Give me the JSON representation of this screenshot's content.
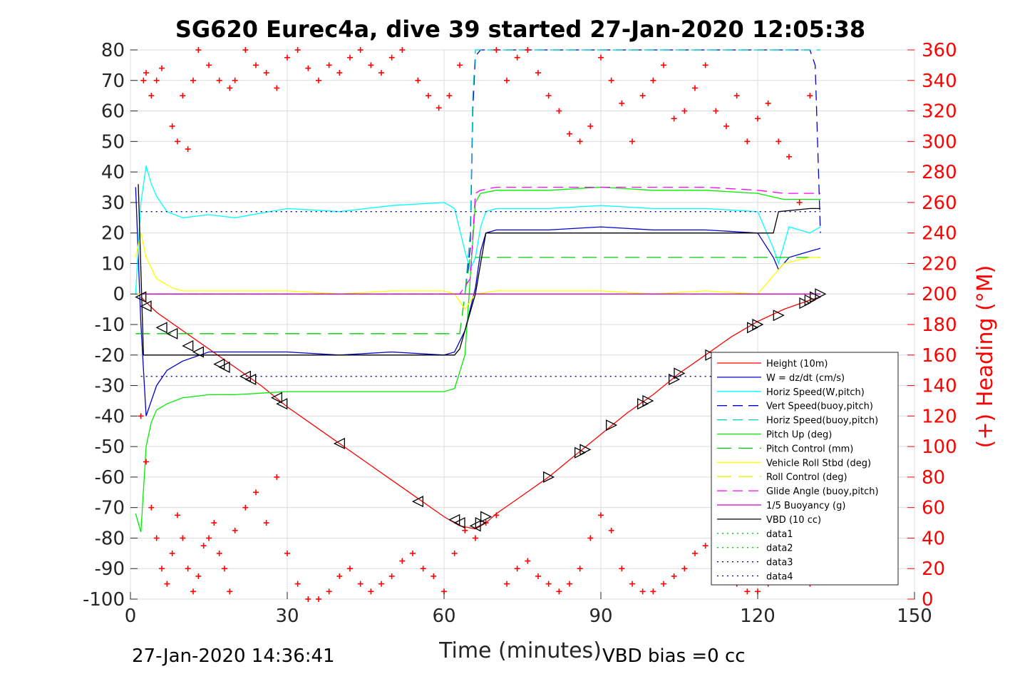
{
  "chart_data": {
    "type": "line",
    "title": "SG620 Eurec4a, dive 39 started 27-Jan-2020 12:05:38",
    "xlabel": "Time (minutes)",
    "ylabel": "",
    "y2label": "(+) Heading (°M)",
    "xlim": [
      0,
      150
    ],
    "ylim": [
      -100,
      80
    ],
    "y2lim": [
      0,
      360
    ],
    "grid": true,
    "legend_position": "bottom-right",
    "x_ticks": [
      "0",
      "30",
      "60",
      "90",
      "120",
      "150"
    ],
    "y_ticks": [
      "80",
      "70",
      "60",
      "50",
      "40",
      "30",
      "20",
      "10",
      "0",
      "-10",
      "-20",
      "-30",
      "-40",
      "-50",
      "-60",
      "-70",
      "-80",
      "-90",
      "-100"
    ],
    "y2_ticks": [
      "360",
      "340",
      "320",
      "300",
      "280",
      "260",
      "240",
      "220",
      "200",
      "180",
      "160",
      "140",
      "120",
      "100",
      "80",
      "60",
      "40",
      "20",
      "0"
    ],
    "footer_left": "27-Jan-2020 14:36:41",
    "footer_right": "VBD bias =0 cc",
    "colors": {
      "height": "#ff0000",
      "w": "#0000cc",
      "horiz": "#00ffff",
      "vert_buoy": "#0000cc",
      "horiz_buoy": "#00cccc",
      "pitch": "#00ee00",
      "pitch_ctrl": "#00cc00",
      "roll": "#ffff00",
      "roll_ctrl": "#eeee00",
      "glide": "#ff00ff",
      "buoy": "#cc00cc",
      "vbd": "#000000",
      "data_green": "#00cc00",
      "data_blue": "#0000aa",
      "heading": "#ff0000"
    },
    "series": [
      {
        "name": "Height (10m)",
        "key": "height",
        "dash": "",
        "x": [
          2,
          5,
          10,
          15,
          20,
          25,
          30,
          35,
          40,
          45,
          50,
          55,
          60,
          63,
          66,
          68,
          70,
          75,
          80,
          85,
          90,
          95,
          100,
          105,
          110,
          115,
          120,
          125,
          130,
          132
        ],
        "y": [
          -1,
          -6,
          -12,
          -18,
          -24,
          -30,
          -37,
          -43,
          -49,
          -55,
          -61,
          -67,
          -73,
          -76,
          -77,
          -75,
          -72,
          -66,
          -60,
          -53,
          -46,
          -39,
          -33,
          -26,
          -20,
          -14,
          -9,
          -5,
          -2,
          -1
        ]
      },
      {
        "name": "W = dz/dt (cm/s)",
        "key": "w",
        "dash": "",
        "x": [
          1,
          2,
          3,
          4,
          5,
          7,
          10,
          15,
          20,
          30,
          40,
          50,
          60,
          62,
          64,
          66,
          67,
          68,
          70,
          80,
          90,
          100,
          110,
          120,
          123,
          124,
          126,
          130,
          132
        ],
        "y": [
          35,
          -10,
          -40,
          -35,
          -30,
          -25,
          -22,
          -19,
          -19,
          -19,
          -20,
          -19,
          -20,
          -19,
          -12,
          2,
          14,
          20,
          21,
          21,
          22,
          21,
          21,
          20,
          12,
          8,
          12,
          14,
          15
        ]
      },
      {
        "name": "Horiz Speed(W,pitch)",
        "key": "horiz",
        "dash": "",
        "x": [
          1,
          2,
          3,
          4,
          5,
          7,
          10,
          15,
          20,
          30,
          40,
          50,
          60,
          62,
          64,
          65,
          66,
          67,
          68,
          70,
          80,
          90,
          100,
          110,
          120,
          123,
          124,
          126,
          130,
          132
        ],
        "y": [
          0,
          30,
          42,
          36,
          32,
          27,
          25,
          26,
          25,
          28,
          27,
          29,
          30,
          28,
          14,
          8,
          12,
          22,
          27,
          28,
          28,
          29,
          28,
          28,
          27,
          15,
          10,
          22,
          20,
          22
        ]
      },
      {
        "name": "Vert Speed(buoy,pitch)",
        "key": "vert_buoy",
        "dash": "14,8",
        "x": [
          2,
          10,
          30,
          50,
          60,
          63,
          64,
          65,
          65.5,
          66,
          67,
          70,
          130,
          131,
          132
        ],
        "y": [
          0,
          0,
          0,
          0,
          0,
          0,
          0,
          15,
          60,
          78,
          80,
          80,
          80,
          75,
          20
        ]
      },
      {
        "name": "Horiz Speed(buoy,pitch)",
        "key": "horiz_buoy",
        "dash": "14,8",
        "x": [
          2,
          10,
          30,
          50,
          60,
          63,
          64,
          65,
          65.5,
          66,
          67,
          70,
          130,
          132
        ],
        "y": [
          0,
          0,
          0,
          0,
          0,
          0,
          0,
          20,
          65,
          80,
          80,
          80,
          80,
          80
        ]
      },
      {
        "name": "Pitch Up (deg)",
        "key": "pitch",
        "dash": "",
        "x": [
          1,
          2,
          3,
          4,
          5,
          7,
          10,
          15,
          20,
          30,
          40,
          50,
          60,
          62,
          64,
          65,
          66,
          67,
          70,
          80,
          90,
          100,
          110,
          120,
          125,
          130,
          132
        ],
        "y": [
          -72,
          -78,
          -50,
          -42,
          -38,
          -36,
          -34,
          -33,
          -33,
          -32,
          -32,
          -32,
          -32,
          -31,
          -20,
          5,
          30,
          33,
          34,
          34,
          35,
          34,
          34,
          33,
          31,
          31,
          31
        ]
      },
      {
        "name": "Pitch Control (mm)",
        "key": "pitch_ctrl",
        "dash": "20,10",
        "x": [
          1,
          2,
          3,
          60,
          63,
          64,
          65,
          66,
          70,
          130,
          132
        ],
        "y": [
          -13,
          -13,
          -13,
          -13,
          -13,
          0,
          12,
          12,
          12,
          12,
          12
        ]
      },
      {
        "name": "Vehicle Roll Stbd (deg)",
        "key": "roll",
        "dash": "",
        "x": [
          1,
          2,
          3,
          5,
          8,
          10,
          15,
          20,
          30,
          40,
          50,
          60,
          62,
          64,
          66,
          70,
          80,
          90,
          100,
          110,
          120,
          125,
          130,
          132
        ],
        "y": [
          12,
          20,
          12,
          5,
          2,
          1,
          1,
          1,
          1,
          0,
          1,
          1,
          0,
          -5,
          0,
          1,
          1,
          1,
          0,
          1,
          0,
          10,
          12,
          12
        ]
      },
      {
        "name": "Roll Control (deg)",
        "key": "roll_ctrl",
        "dash": "20,10",
        "x": [
          1,
          3,
          5,
          10,
          30,
          60,
          63,
          64,
          66,
          70,
          130,
          132
        ],
        "y": [
          0,
          0,
          0,
          0,
          0,
          0,
          0,
          0,
          0,
          0,
          0,
          0
        ]
      },
      {
        "name": "Glide Angle (buoy,pitch)",
        "key": "glide",
        "dash": "14,8",
        "x": [
          2,
          10,
          30,
          60,
          63,
          65,
          66,
          67,
          70,
          80,
          90,
          100,
          110,
          120,
          125,
          130,
          132
        ],
        "y": [
          0,
          0,
          0,
          0,
          0,
          5,
          33,
          34,
          35,
          35,
          35,
          35,
          35,
          34,
          33,
          33,
          33
        ]
      },
      {
        "name": "1/5 Buoyancy (g)",
        "key": "buoy",
        "dash": "",
        "x": [
          2,
          10,
          30,
          60,
          63,
          64,
          65,
          66,
          132
        ],
        "y": [
          0,
          0,
          0,
          0,
          0,
          0,
          0,
          0,
          0
        ]
      },
      {
        "name": "VBD (10 cc)",
        "key": "vbd",
        "dash": "",
        "x": [
          1.5,
          2.5,
          3,
          10,
          30,
          50,
          62,
          63,
          64,
          66,
          67,
          68,
          70,
          100,
          123,
          124,
          130,
          132
        ],
        "y": [
          36,
          -20,
          -20,
          -20,
          -20,
          -20,
          -20,
          -18,
          -12,
          0,
          10,
          20,
          20,
          20,
          20,
          27,
          28,
          28
        ]
      },
      {
        "name": "data1",
        "key": "data_green",
        "dash": "2,5",
        "x": [],
        "y": []
      },
      {
        "name": "data2",
        "key": "data_green",
        "dash": "2,5",
        "x": [],
        "y": []
      },
      {
        "name": "data3",
        "key": "data_blue",
        "dash": "2,5",
        "x": [
          2,
          132
        ],
        "y": [
          27,
          27
        ]
      },
      {
        "name": "data4",
        "key": "data_blue",
        "dash": "2,5",
        "x": [
          2,
          132
        ],
        "y": [
          -27,
          -27
        ]
      }
    ],
    "heading_markers": {
      "name": "(+) Heading (°M)",
      "upper": {
        "x": [
          2.5,
          3,
          4,
          5,
          6,
          8,
          9,
          10,
          11,
          12,
          13,
          15,
          17,
          19,
          20,
          22,
          24,
          26,
          28,
          30,
          32,
          34,
          36,
          38,
          40,
          42,
          44,
          46,
          48,
          50,
          52,
          55,
          57,
          59,
          61,
          63,
          70,
          72,
          74,
          76,
          78,
          80,
          82,
          84,
          86,
          88,
          90,
          92,
          94,
          96,
          98,
          100,
          102,
          104,
          106,
          108,
          110,
          112,
          114,
          116,
          118,
          120,
          122,
          124,
          126,
          128,
          130
        ],
        "y": [
          340,
          345,
          330,
          340,
          348,
          310,
          300,
          330,
          295,
          340,
          360,
          350,
          340,
          335,
          340,
          360,
          350,
          345,
          335,
          355,
          360,
          348,
          340,
          350,
          345,
          355,
          360,
          350,
          345,
          355,
          360,
          340,
          330,
          322,
          330,
          350,
          360,
          340,
          355,
          360,
          345,
          330,
          320,
          305,
          300,
          310,
          355,
          340,
          325,
          300,
          330,
          340,
          350,
          315,
          320,
          335,
          350,
          320,
          310,
          330,
          300,
          315,
          325,
          300,
          290,
          260,
          330
        ]
      },
      "lower": {
        "x": [
          2,
          3,
          4,
          5,
          6,
          7,
          8,
          9,
          10,
          11,
          12,
          13,
          14,
          15,
          16,
          17,
          18,
          19,
          20,
          22,
          24,
          26,
          28,
          30,
          32,
          34,
          36,
          38,
          40,
          42,
          44,
          46,
          48,
          50,
          52,
          54,
          56,
          58,
          60,
          62,
          64,
          66,
          68,
          70,
          72,
          74,
          76,
          78,
          80,
          82,
          84,
          86,
          88,
          90,
          92,
          94,
          96,
          98,
          100,
          102,
          104,
          106,
          108,
          110,
          112,
          114,
          116,
          118,
          120,
          122,
          124,
          126,
          128,
          130
        ],
        "y": [
          120,
          90,
          60,
          40,
          20,
          10,
          30,
          55,
          40,
          20,
          5,
          15,
          35,
          40,
          50,
          30,
          20,
          5,
          45,
          60,
          70,
          50,
          80,
          30,
          10,
          0,
          0,
          5,
          15,
          20,
          10,
          5,
          10,
          15,
          25,
          30,
          20,
          15,
          5,
          30,
          45,
          40,
          50,
          55,
          10,
          20,
          25,
          15,
          10,
          5,
          10,
          20,
          40,
          55,
          45,
          20,
          10,
          5,
          5,
          10,
          15,
          20,
          30,
          35,
          40,
          20,
          10,
          5,
          5,
          10,
          15,
          20,
          25,
          10
        ]
      }
    },
    "height_markers": {
      "down": {
        "x": [
          2,
          3,
          6,
          8,
          11,
          13,
          17,
          18,
          22,
          23,
          28,
          29,
          40,
          55,
          62,
          63,
          66
        ],
        "y": [
          -1,
          -4,
          -11,
          -13,
          -17,
          -19,
          -23,
          -24,
          -27,
          -28,
          -34,
          -36,
          -49,
          -68,
          -74,
          -75,
          -76
        ]
      },
      "up": {
        "x": [
          67,
          68,
          80,
          86,
          87,
          92,
          98,
          99,
          104,
          105,
          111,
          119,
          120,
          124,
          129,
          130,
          131,
          132
        ],
        "y": [
          -75,
          -73,
          -60,
          -52,
          -51,
          -43,
          -36,
          -35,
          -28,
          -26,
          -20,
          -11,
          -10,
          -7,
          -3,
          -2,
          -1,
          0
        ]
      }
    }
  }
}
